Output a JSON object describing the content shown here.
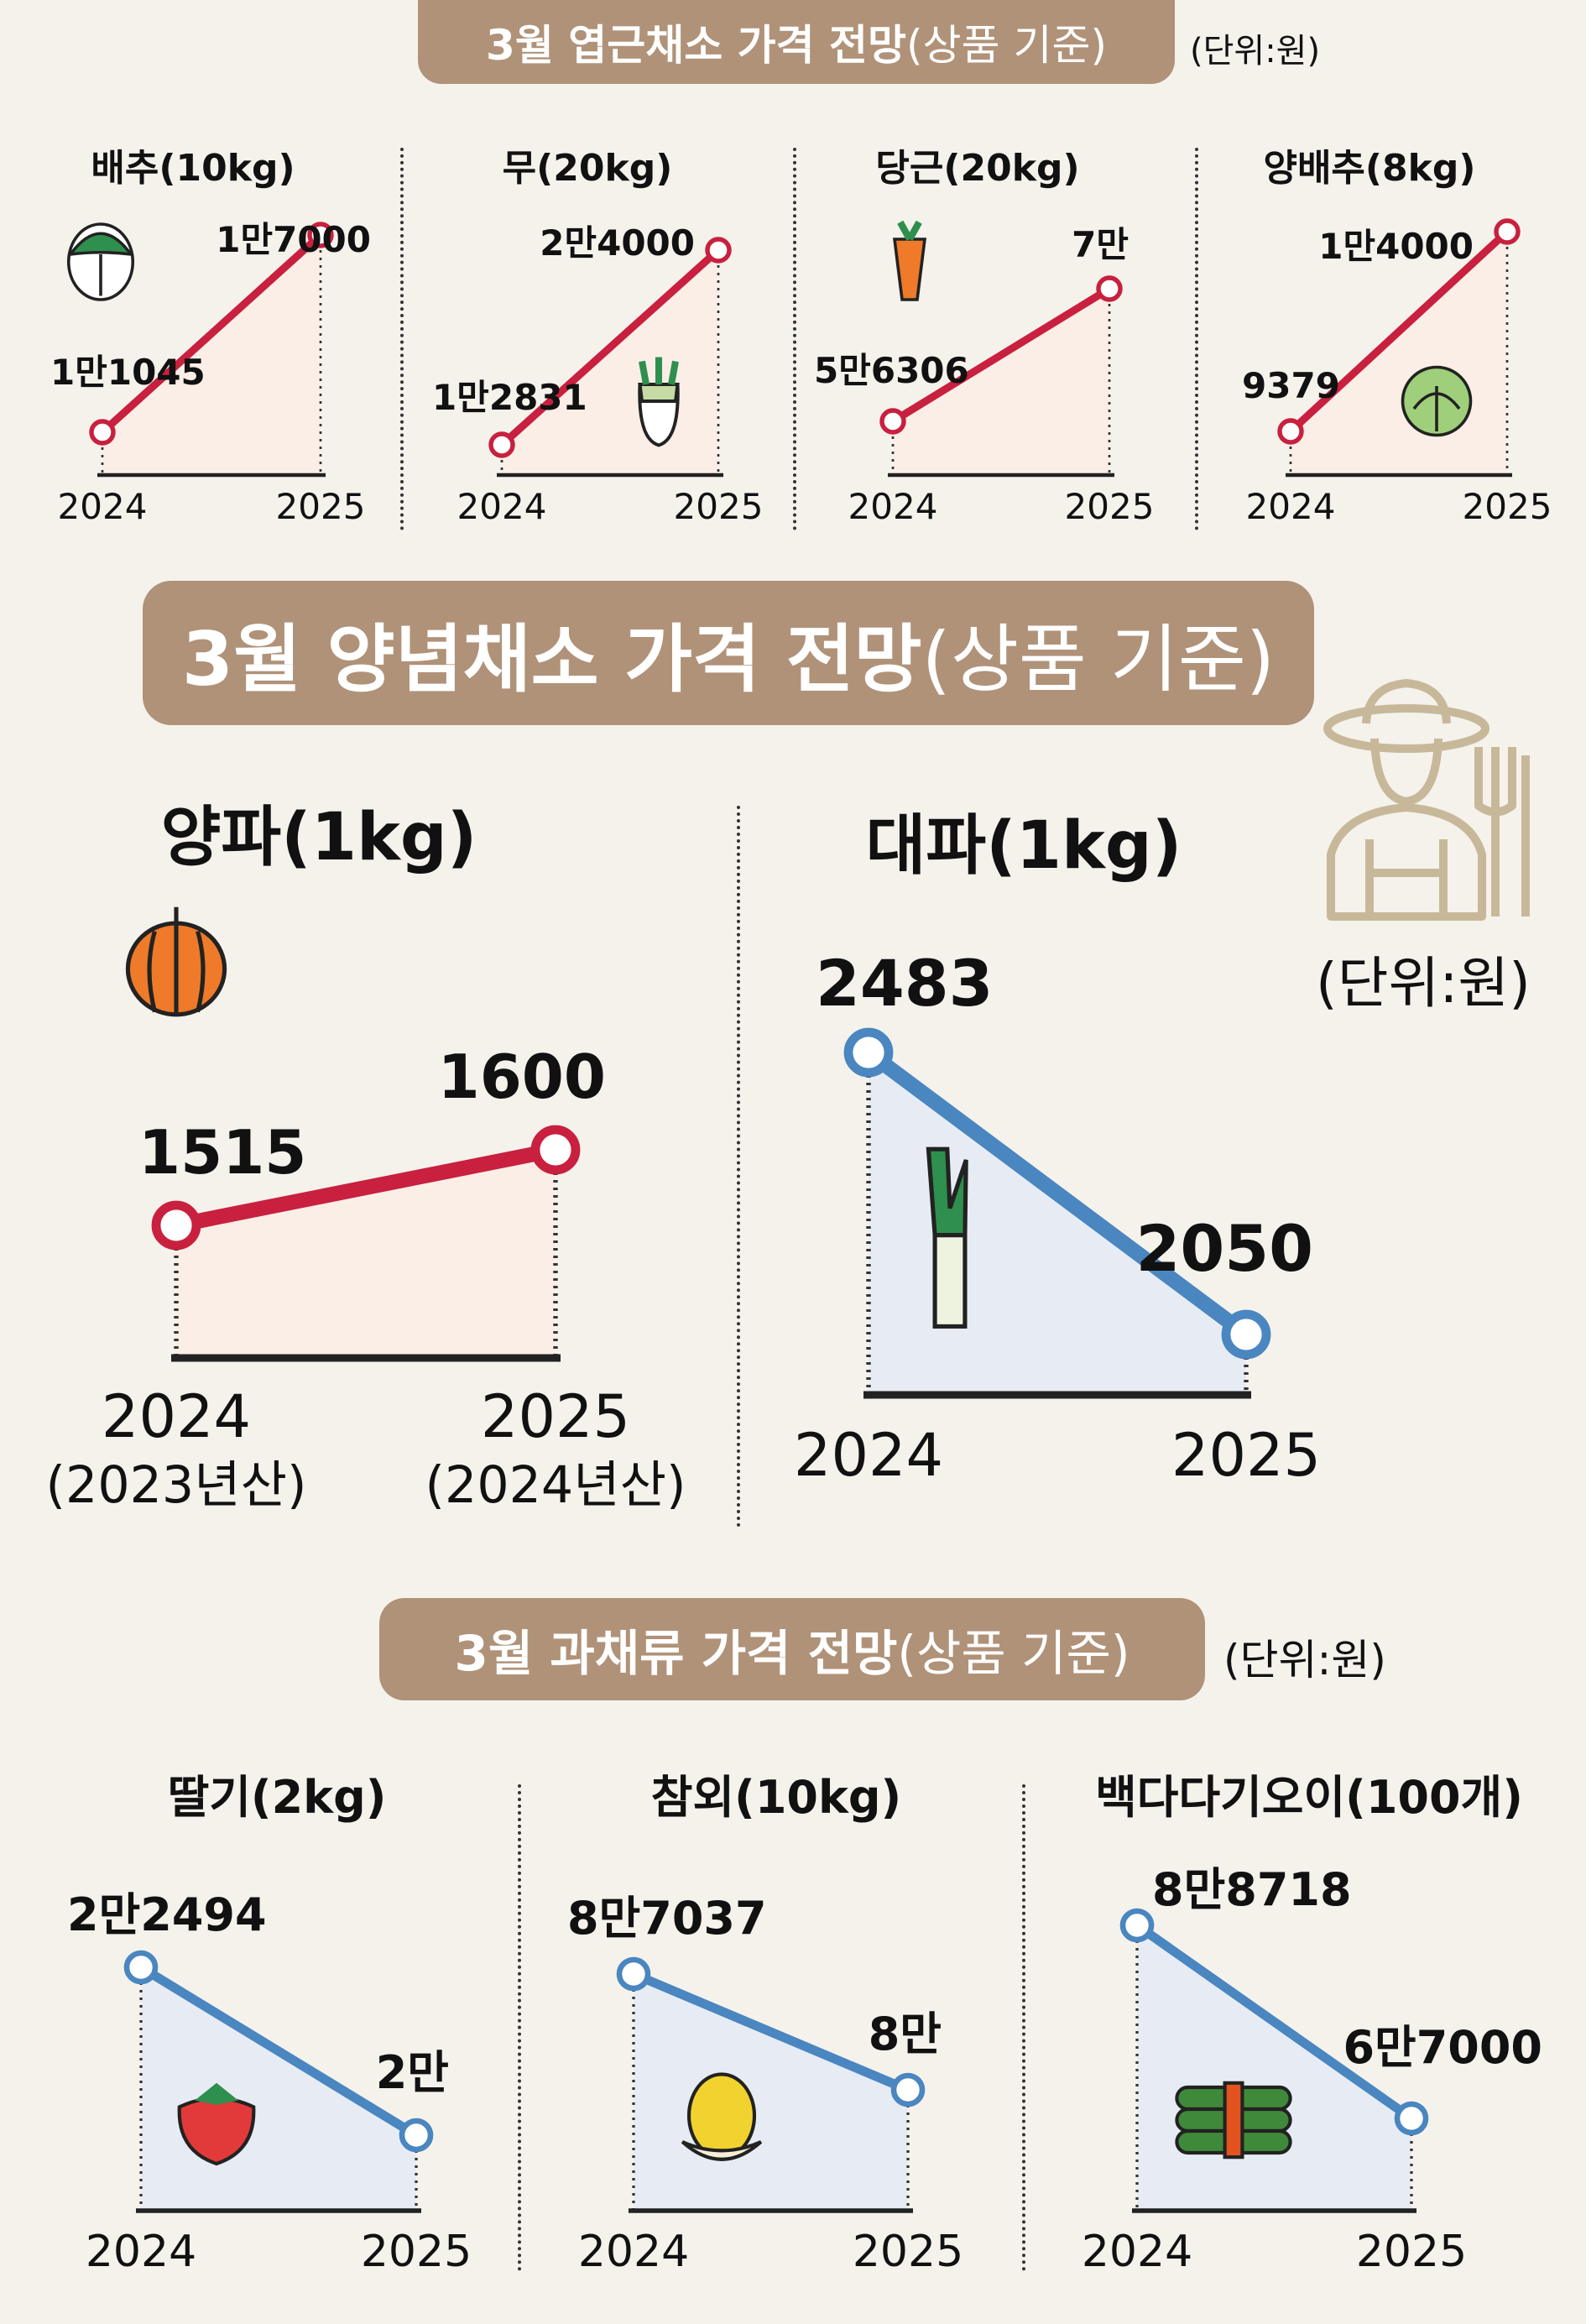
{
  "sections": {
    "leafy": {
      "title": "3월 엽근채소 가격 전망",
      "sub": "(상품 기준)",
      "unit": "(단위:원)"
    },
    "seasoning": {
      "title": "3월 양념채소 가격 전망",
      "sub": "(상품 기준)",
      "unit": "(단위:원)"
    },
    "fruitveg": {
      "title": "3월 과채류 가격 전망",
      "sub": "(상품 기준)",
      "unit": "(단위:원)"
    }
  },
  "colors": {
    "increase": "#c8203e",
    "decrease": "#4a86c0",
    "band": "#b09279",
    "background": "#f5f2ec"
  },
  "chart_data": [
    {
      "type": "line",
      "title": "배추(10kg)",
      "x": [
        "2024",
        "2025"
      ],
      "values": [
        11045,
        17000
      ],
      "value_labels": [
        "1만1045",
        "1만7000"
      ],
      "icon": "napa-cabbage-icon"
    },
    {
      "type": "line",
      "title": "무(20kg)",
      "x": [
        "2024",
        "2025"
      ],
      "values": [
        12831,
        24000
      ],
      "value_labels": [
        "1만2831",
        "2만4000"
      ],
      "icon": "radish-icon"
    },
    {
      "type": "line",
      "title": "당근(20kg)",
      "x": [
        "2024",
        "2025"
      ],
      "values": [
        56306,
        70000
      ],
      "value_labels": [
        "5만6306",
        "7만"
      ],
      "icon": "carrot-icon"
    },
    {
      "type": "line",
      "title": "양배추(8kg)",
      "x": [
        "2024",
        "2025"
      ],
      "values": [
        9379,
        14000
      ],
      "value_labels": [
        "9379",
        "1만4000"
      ],
      "icon": "cabbage-icon"
    },
    {
      "type": "line",
      "title": "양파(1kg)",
      "x": [
        "2024",
        "2025"
      ],
      "x_sub": [
        "(2023년산)",
        "(2024년산)"
      ],
      "values": [
        1515,
        1600
      ],
      "value_labels": [
        "1515",
        "1600"
      ],
      "icon": "onion-icon"
    },
    {
      "type": "line",
      "title": "대파(1kg)",
      "x": [
        "2024",
        "2025"
      ],
      "values": [
        2483,
        2050
      ],
      "value_labels": [
        "2483",
        "2050"
      ],
      "icon": "green-onion-icon"
    },
    {
      "type": "line",
      "title": "딸기(2kg)",
      "x": [
        "2024",
        "2025"
      ],
      "values": [
        22494,
        20000
      ],
      "value_labels": [
        "2만2494",
        "2만"
      ],
      "icon": "strawberry-icon"
    },
    {
      "type": "line",
      "title": "참외(10kg)",
      "x": [
        "2024",
        "2025"
      ],
      "values": [
        87037,
        80000
      ],
      "value_labels": [
        "8만7037",
        "8만"
      ],
      "icon": "korean-melon-icon"
    },
    {
      "type": "line",
      "title": "백다다기오이(100개)",
      "x": [
        "2024",
        "2025"
      ],
      "values": [
        88718,
        67000
      ],
      "value_labels": [
        "8만8718",
        "6만7000"
      ],
      "icon": "cucumber-icon"
    }
  ]
}
